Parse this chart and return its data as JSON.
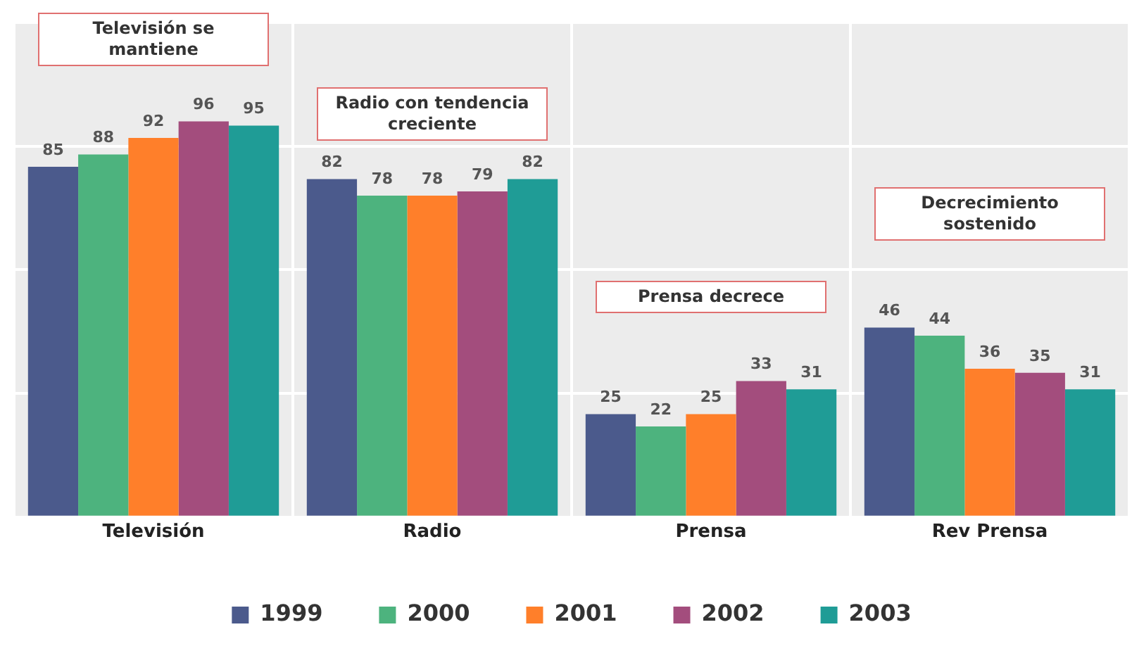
{
  "chart_data": {
    "type": "bar",
    "categories": [
      "Televisión",
      "Radio",
      "Prensa",
      "Rev Prensa"
    ],
    "series": [
      {
        "name": "1999",
        "color": "#4b5a8c",
        "values": [
          85,
          82,
          25,
          46
        ]
      },
      {
        "name": "2000",
        "color": "#4db37e",
        "values": [
          88,
          78,
          22,
          44
        ]
      },
      {
        "name": "2001",
        "color": "#ff7f2a",
        "values": [
          92,
          78,
          25,
          36
        ]
      },
      {
        "name": "2002",
        "color": "#a34d7d",
        "values": [
          96,
          79,
          33,
          35
        ]
      },
      {
        "name": "2003",
        "color": "#1f9c96",
        "values": [
          95,
          82,
          31,
          31
        ]
      }
    ],
    "ylim": [
      0,
      120
    ],
    "yticks": [
      {
        "value": 0,
        "label": null
      },
      {
        "value": 30,
        "label": null
      },
      {
        "value": 60,
        "label": null
      },
      {
        "value": 90,
        "label": null
      },
      {
        "value": 120,
        "label": null
      }
    ],
    "tick_labels": "x",
    "grid": true,
    "legend": "bottom",
    "data_labels": true,
    "annotations": [
      "Televisión se mantiene",
      "Radio con tendencia creciente",
      "Prensa decrece",
      "Decrecimiento sostenido"
    ]
  }
}
